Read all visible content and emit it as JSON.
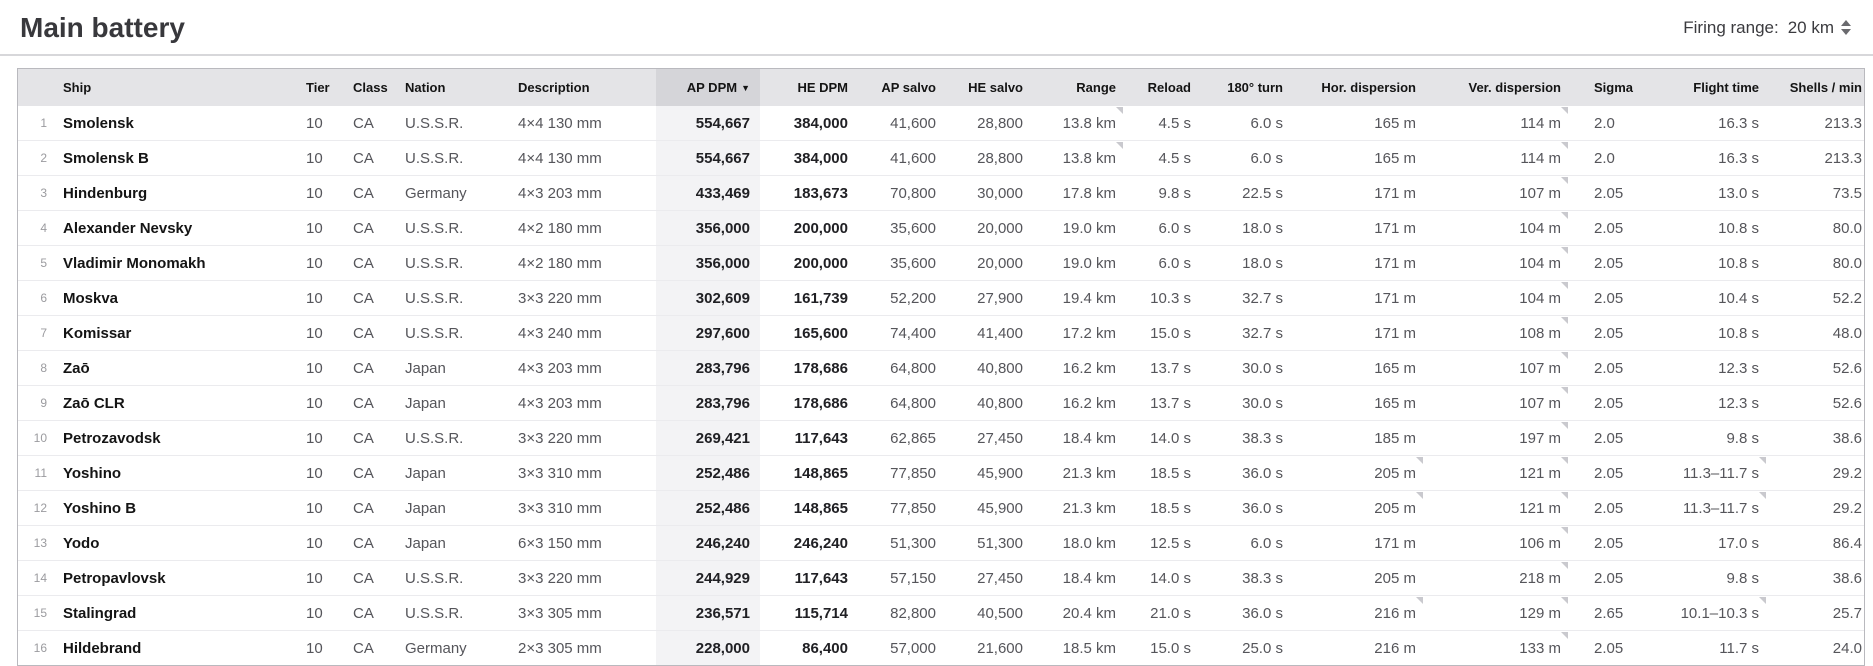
{
  "page": {
    "title": "Main battery",
    "firing_range": {
      "label": "Firing range:",
      "value": "20 km"
    }
  },
  "table": {
    "sort_indicator": "▼",
    "columns": [
      {
        "key": "num",
        "label": ""
      },
      {
        "key": "ship",
        "label": "Ship"
      },
      {
        "key": "tier",
        "label": "Tier"
      },
      {
        "key": "class",
        "label": "Class"
      },
      {
        "key": "nation",
        "label": "Nation"
      },
      {
        "key": "description",
        "label": "Description"
      },
      {
        "key": "ap_dpm",
        "label": "AP DPM",
        "sorted": "desc"
      },
      {
        "key": "he_dpm",
        "label": "HE DPM"
      },
      {
        "key": "ap_salvo",
        "label": "AP salvo"
      },
      {
        "key": "he_salvo",
        "label": "HE salvo"
      },
      {
        "key": "range",
        "label": "Range"
      },
      {
        "key": "reload",
        "label": "Reload"
      },
      {
        "key": "turn",
        "label": "180° turn"
      },
      {
        "key": "hor",
        "label": "Hor. dispersion"
      },
      {
        "key": "ver",
        "label": "Ver. dispersion"
      },
      {
        "key": "sigma",
        "label": "Sigma"
      },
      {
        "key": "flight",
        "label": "Flight time"
      },
      {
        "key": "shells",
        "label": "Shells / min"
      }
    ],
    "rows": [
      {
        "num": "1",
        "ship": "Smolensk",
        "tier": "10",
        "class": "CA",
        "nation": "U.S.S.R.",
        "description": "4×4 130 mm",
        "ap_dpm": "554,667",
        "he_dpm": "384,000",
        "ap_salvo": "41,600",
        "he_salvo": "28,800",
        "range": "13.8 km",
        "reload": "4.5 s",
        "turn": "6.0 s",
        "hor": "165 m",
        "ver": "114 m",
        "sigma": "2.0",
        "flight": "16.3 s",
        "shells": "213.3",
        "markers": [
          "range",
          "ver"
        ]
      },
      {
        "num": "2",
        "ship": "Smolensk B",
        "tier": "10",
        "class": "CA",
        "nation": "U.S.S.R.",
        "description": "4×4 130 mm",
        "ap_dpm": "554,667",
        "he_dpm": "384,000",
        "ap_salvo": "41,600",
        "he_salvo": "28,800",
        "range": "13.8 km",
        "reload": "4.5 s",
        "turn": "6.0 s",
        "hor": "165 m",
        "ver": "114 m",
        "sigma": "2.0",
        "flight": "16.3 s",
        "shells": "213.3",
        "markers": [
          "range",
          "ver"
        ]
      },
      {
        "num": "3",
        "ship": "Hindenburg",
        "tier": "10",
        "class": "CA",
        "nation": "Germany",
        "description": "4×3 203 mm",
        "ap_dpm": "433,469",
        "he_dpm": "183,673",
        "ap_salvo": "70,800",
        "he_salvo": "30,000",
        "range": "17.8 km",
        "reload": "9.8 s",
        "turn": "22.5 s",
        "hor": "171 m",
        "ver": "107 m",
        "sigma": "2.05",
        "flight": "13.0 s",
        "shells": "73.5",
        "markers": [
          "ver"
        ]
      },
      {
        "num": "4",
        "ship": "Alexander Nevsky",
        "tier": "10",
        "class": "CA",
        "nation": "U.S.S.R.",
        "description": "4×2 180 mm",
        "ap_dpm": "356,000",
        "he_dpm": "200,000",
        "ap_salvo": "35,600",
        "he_salvo": "20,000",
        "range": "19.0 km",
        "reload": "6.0 s",
        "turn": "18.0 s",
        "hor": "171 m",
        "ver": "104 m",
        "sigma": "2.05",
        "flight": "10.8 s",
        "shells": "80.0",
        "markers": [
          "ver"
        ]
      },
      {
        "num": "5",
        "ship": "Vladimir Monomakh",
        "tier": "10",
        "class": "CA",
        "nation": "U.S.S.R.",
        "description": "4×2 180 mm",
        "ap_dpm": "356,000",
        "he_dpm": "200,000",
        "ap_salvo": "35,600",
        "he_salvo": "20,000",
        "range": "19.0 km",
        "reload": "6.0 s",
        "turn": "18.0 s",
        "hor": "171 m",
        "ver": "104 m",
        "sigma": "2.05",
        "flight": "10.8 s",
        "shells": "80.0",
        "markers": [
          "ver"
        ]
      },
      {
        "num": "6",
        "ship": "Moskva",
        "tier": "10",
        "class": "CA",
        "nation": "U.S.S.R.",
        "description": "3×3 220 mm",
        "ap_dpm": "302,609",
        "he_dpm": "161,739",
        "ap_salvo": "52,200",
        "he_salvo": "27,900",
        "range": "19.4 km",
        "reload": "10.3 s",
        "turn": "32.7 s",
        "hor": "171 m",
        "ver": "104 m",
        "sigma": "2.05",
        "flight": "10.4 s",
        "shells": "52.2",
        "markers": [
          "ver"
        ]
      },
      {
        "num": "7",
        "ship": "Komissar",
        "tier": "10",
        "class": "CA",
        "nation": "U.S.S.R.",
        "description": "4×3 240 mm",
        "ap_dpm": "297,600",
        "he_dpm": "165,600",
        "ap_salvo": "74,400",
        "he_salvo": "41,400",
        "range": "17.2 km",
        "reload": "15.0 s",
        "turn": "32.7 s",
        "hor": "171 m",
        "ver": "108 m",
        "sigma": "2.05",
        "flight": "10.8 s",
        "shells": "48.0",
        "markers": [
          "ver"
        ]
      },
      {
        "num": "8",
        "ship": "Zaō",
        "tier": "10",
        "class": "CA",
        "nation": "Japan",
        "description": "4×3 203 mm",
        "ap_dpm": "283,796",
        "he_dpm": "178,686",
        "ap_salvo": "64,800",
        "he_salvo": "40,800",
        "range": "16.2 km",
        "reload": "13.7 s",
        "turn": "30.0 s",
        "hor": "165 m",
        "ver": "107 m",
        "sigma": "2.05",
        "flight": "12.3 s",
        "shells": "52.6",
        "markers": [
          "ver"
        ]
      },
      {
        "num": "9",
        "ship": "Zaō CLR",
        "tier": "10",
        "class": "CA",
        "nation": "Japan",
        "description": "4×3 203 mm",
        "ap_dpm": "283,796",
        "he_dpm": "178,686",
        "ap_salvo": "64,800",
        "he_salvo": "40,800",
        "range": "16.2 km",
        "reload": "13.7 s",
        "turn": "30.0 s",
        "hor": "165 m",
        "ver": "107 m",
        "sigma": "2.05",
        "flight": "12.3 s",
        "shells": "52.6",
        "markers": [
          "ver"
        ]
      },
      {
        "num": "10",
        "ship": "Petrozavodsk",
        "tier": "10",
        "class": "CA",
        "nation": "U.S.S.R.",
        "description": "3×3 220 mm",
        "ap_dpm": "269,421",
        "he_dpm": "117,643",
        "ap_salvo": "62,865",
        "he_salvo": "27,450",
        "range": "18.4 km",
        "reload": "14.0 s",
        "turn": "38.3 s",
        "hor": "185 m",
        "ver": "197 m",
        "sigma": "2.05",
        "flight": "9.8 s",
        "shells": "38.6",
        "markers": [
          "ver"
        ]
      },
      {
        "num": "11",
        "ship": "Yoshino",
        "tier": "10",
        "class": "CA",
        "nation": "Japan",
        "description": "3×3 310 mm",
        "ap_dpm": "252,486",
        "he_dpm": "148,865",
        "ap_salvo": "77,850",
        "he_salvo": "45,900",
        "range": "21.3 km",
        "reload": "18.5 s",
        "turn": "36.0 s",
        "hor": "205 m",
        "ver": "121 m",
        "sigma": "2.05",
        "flight": "11.3–11.7 s",
        "shells": "29.2",
        "markers": [
          "hor",
          "ver",
          "flight"
        ]
      },
      {
        "num": "12",
        "ship": "Yoshino B",
        "tier": "10",
        "class": "CA",
        "nation": "Japan",
        "description": "3×3 310 mm",
        "ap_dpm": "252,486",
        "he_dpm": "148,865",
        "ap_salvo": "77,850",
        "he_salvo": "45,900",
        "range": "21.3 km",
        "reload": "18.5 s",
        "turn": "36.0 s",
        "hor": "205 m",
        "ver": "121 m",
        "sigma": "2.05",
        "flight": "11.3–11.7 s",
        "shells": "29.2",
        "markers": [
          "hor",
          "ver",
          "flight"
        ]
      },
      {
        "num": "13",
        "ship": "Yodo",
        "tier": "10",
        "class": "CA",
        "nation": "Japan",
        "description": "6×3 150 mm",
        "ap_dpm": "246,240",
        "he_dpm": "246,240",
        "ap_salvo": "51,300",
        "he_salvo": "51,300",
        "range": "18.0 km",
        "reload": "12.5 s",
        "turn": "6.0 s",
        "hor": "171 m",
        "ver": "106 m",
        "sigma": "2.05",
        "flight": "17.0 s",
        "shells": "86.4",
        "markers": [
          "ver"
        ]
      },
      {
        "num": "14",
        "ship": "Petropavlovsk",
        "tier": "10",
        "class": "CA",
        "nation": "U.S.S.R.",
        "description": "3×3 220 mm",
        "ap_dpm": "244,929",
        "he_dpm": "117,643",
        "ap_salvo": "57,150",
        "he_salvo": "27,450",
        "range": "18.4 km",
        "reload": "14.0 s",
        "turn": "38.3 s",
        "hor": "205 m",
        "ver": "218 m",
        "sigma": "2.05",
        "flight": "9.8 s",
        "shells": "38.6",
        "markers": [
          "ver"
        ]
      },
      {
        "num": "15",
        "ship": "Stalingrad",
        "tier": "10",
        "class": "CA",
        "nation": "U.S.S.R.",
        "description": "3×3 305 mm",
        "ap_dpm": "236,571",
        "he_dpm": "115,714",
        "ap_salvo": "82,800",
        "he_salvo": "40,500",
        "range": "20.4 km",
        "reload": "21.0 s",
        "turn": "36.0 s",
        "hor": "216 m",
        "ver": "129 m",
        "sigma": "2.65",
        "flight": "10.1–10.3 s",
        "shells": "25.7",
        "markers": [
          "hor",
          "ver",
          "flight"
        ]
      },
      {
        "num": "16",
        "ship": "Hildebrand",
        "tier": "10",
        "class": "CA",
        "nation": "Germany",
        "description": "2×3 305 mm",
        "ap_dpm": "228,000",
        "he_dpm": "86,400",
        "ap_salvo": "57,000",
        "he_salvo": "21,600",
        "range": "18.5 km",
        "reload": "15.0 s",
        "turn": "25.0 s",
        "hor": "216 m",
        "ver": "133 m",
        "sigma": "2.05",
        "flight": "11.7 s",
        "shells": "24.0",
        "markers": [
          "ver"
        ]
      }
    ]
  }
}
